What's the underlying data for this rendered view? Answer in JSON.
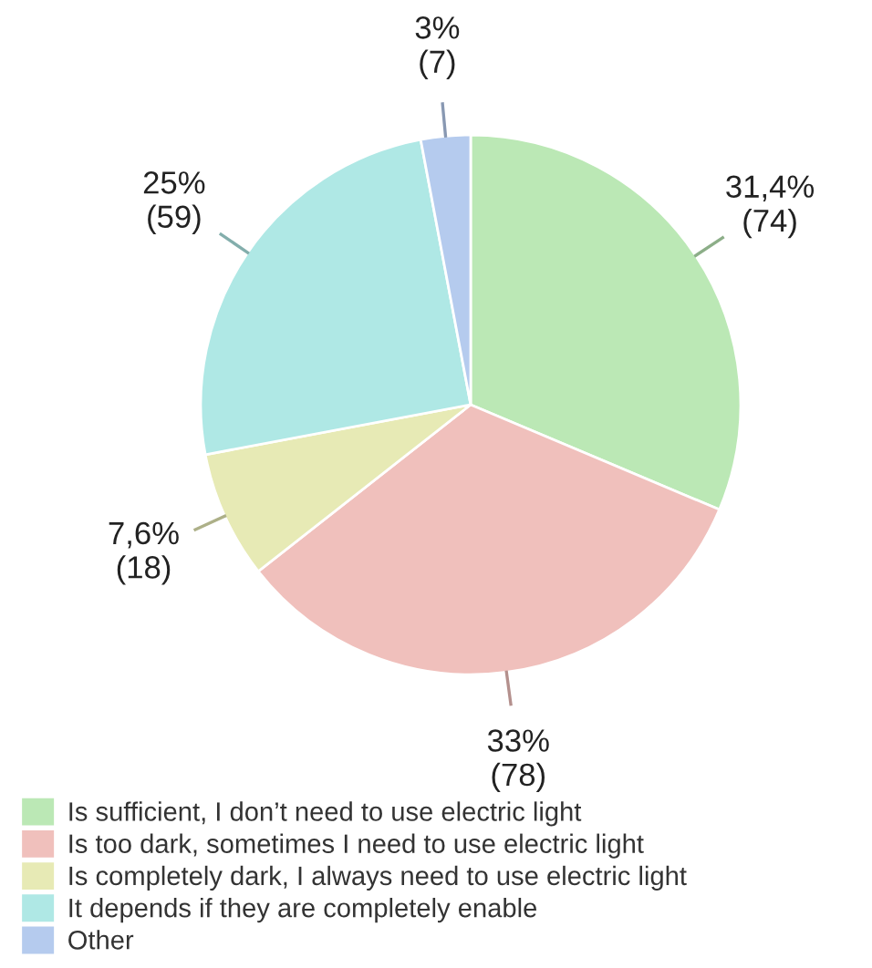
{
  "chart_data": {
    "type": "pie",
    "categories": [
      "Is sufficient, I don’t need to use electric light",
      "Is too dark, sometimes I need to use electric light",
      "Is completely dark, I always need to use electric light",
      "It depends if they are completely enable",
      "Other"
    ],
    "values": [
      74,
      78,
      18,
      59,
      7
    ],
    "colors": [
      "#bbe8b5",
      "#f0c0bc",
      "#e7eab5",
      "#afe8e5",
      "#b5cbee"
    ],
    "value_labels": [
      "31,4%\n(74)",
      "33%\n(78)",
      "7,6%\n(18)",
      "25%\n(59)",
      "3%\n(7)"
    ],
    "legend": "bottom"
  }
}
